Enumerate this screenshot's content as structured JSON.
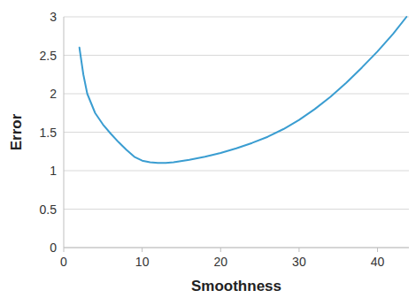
{
  "chart_data": {
    "type": "line",
    "x_label": "Smoothness",
    "y_label": "Error",
    "x": [
      2,
      2.5,
      3,
      4,
      5,
      6,
      7,
      8,
      9,
      10,
      11,
      12,
      13,
      14,
      16,
      18,
      20,
      22,
      24,
      26,
      28,
      30,
      32,
      34,
      36,
      38,
      40,
      42,
      43.7
    ],
    "series": [
      {
        "name": "Error",
        "color": "#3a9dd1",
        "values": [
          2.6,
          2.25,
          2.0,
          1.75,
          1.6,
          1.48,
          1.37,
          1.27,
          1.18,
          1.13,
          1.11,
          1.1,
          1.1,
          1.11,
          1.14,
          1.18,
          1.23,
          1.29,
          1.36,
          1.44,
          1.54,
          1.66,
          1.8,
          1.96,
          2.14,
          2.34,
          2.55,
          2.78,
          3.0
        ]
      }
    ],
    "xlim": [
      0,
      44
    ],
    "xticks": [
      0,
      10,
      20,
      30,
      40
    ],
    "ylim": [
      0,
      3
    ],
    "yticks": [
      0,
      0.5,
      1,
      1.5,
      2,
      2.5,
      3
    ],
    "grid": true
  }
}
